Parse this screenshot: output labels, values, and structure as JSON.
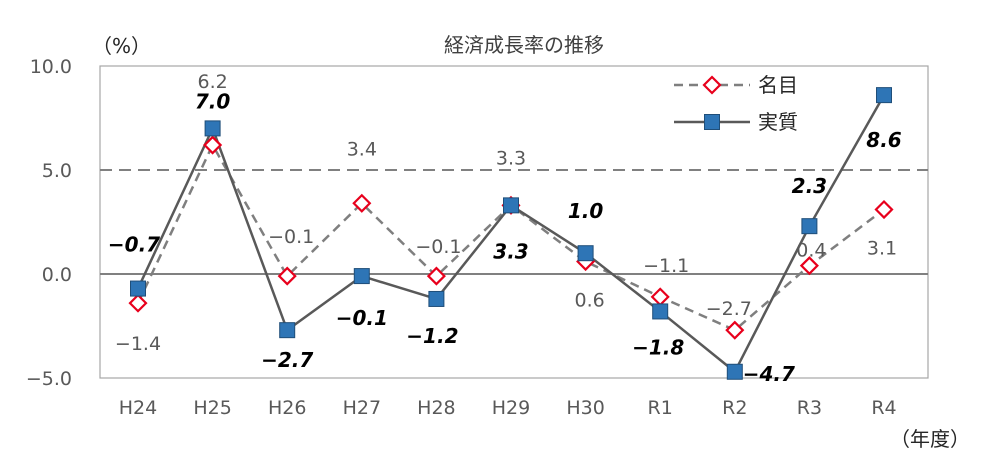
{
  "chart_data": {
    "type": "line",
    "title": "経済成長率の推移",
    "ylabel": "（%）",
    "xlabel": "（年度）",
    "categories": [
      "H24",
      "H25",
      "H26",
      "H27",
      "H28",
      "H29",
      "H30",
      "R1",
      "R2",
      "R3",
      "R4"
    ],
    "ylim": [
      -5.0,
      10.0
    ],
    "yticks": [
      "10.0",
      "5.0",
      "0.0",
      "−5.0"
    ],
    "ytick_values": [
      10,
      5,
      0,
      -5
    ],
    "reference_line": 5.0,
    "legend_position": "top-right",
    "series": [
      {
        "name": "名目",
        "style": "dashed",
        "marker": "diamond-open",
        "color": "#e8001c",
        "line_color": "#7f7f7f",
        "values": [
          -1.4,
          6.2,
          -0.1,
          3.4,
          -0.1,
          3.3,
          0.6,
          -1.1,
          -2.7,
          0.4,
          3.1
        ],
        "labels": [
          "−1.4",
          "6.2",
          "−0.1",
          "3.4",
          "−0.1",
          "3.3",
          "0.6",
          "−1.1",
          "−2.7",
          "0.4",
          "3.1"
        ]
      },
      {
        "name": "実質",
        "style": "solid",
        "marker": "square-filled",
        "color": "#2e75b6",
        "line_color": "#595959",
        "values": [
          -0.7,
          7.0,
          -2.7,
          -0.1,
          -1.2,
          3.3,
          1.0,
          -1.8,
          -4.7,
          2.3,
          8.6
        ],
        "labels": [
          "−0.7",
          "7.0",
          "−2.7",
          "−0.1",
          "−1.2",
          "3.3",
          "1.0",
          "−1.8",
          "−4.7",
          "2.3",
          "8.6"
        ]
      }
    ]
  }
}
